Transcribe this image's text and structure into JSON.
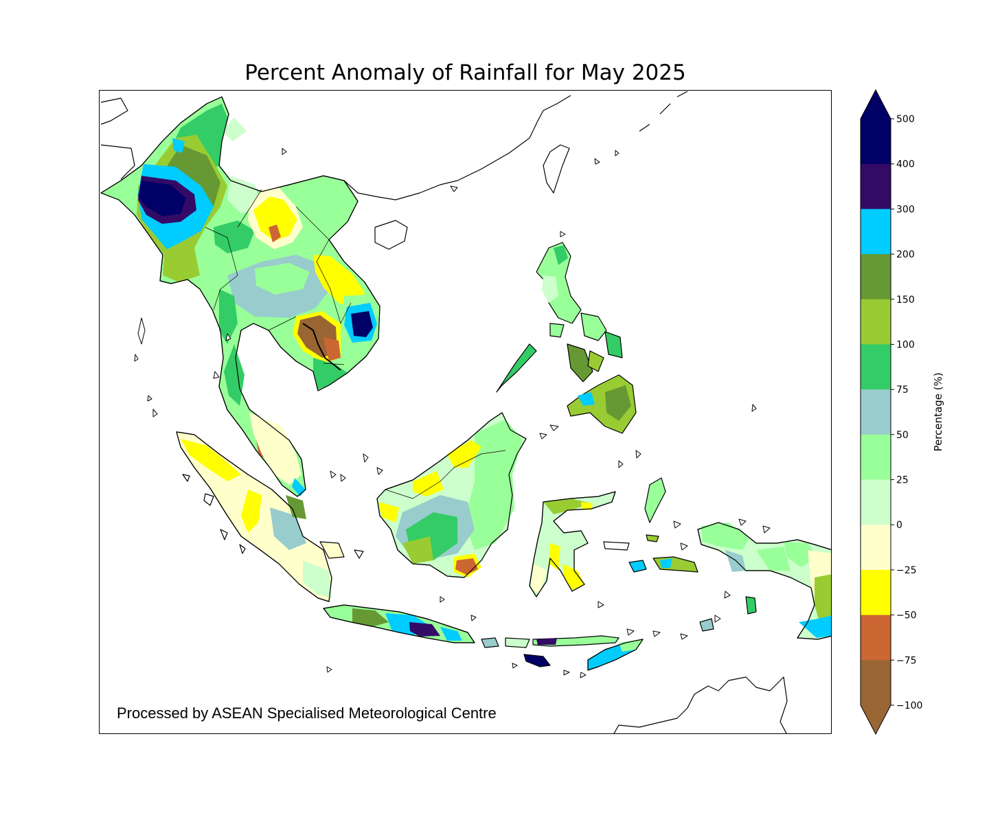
{
  "title": "Percent Anomaly of Rainfall for May 2025",
  "credit": "Processed by ASEAN Specialised Meteorological Centre",
  "colorbar": {
    "label": "Percentage (%)",
    "ticks": [
      "500",
      "400",
      "300",
      "200",
      "150",
      "100",
      "75",
      "50",
      "25",
      "0",
      "−25",
      "−50",
      "−75",
      "−100"
    ],
    "bins": [
      {
        "from": 400,
        "to": 500,
        "color": "#000066"
      },
      {
        "from": 300,
        "to": 400,
        "color": "#330a66"
      },
      {
        "from": 200,
        "to": 300,
        "color": "#00ccff"
      },
      {
        "from": 150,
        "to": 200,
        "color": "#669933"
      },
      {
        "from": 100,
        "to": 150,
        "color": "#99cc33"
      },
      {
        "from": 75,
        "to": 100,
        "color": "#33cc66"
      },
      {
        "from": 50,
        "to": 75,
        "color": "#99cccc"
      },
      {
        "from": 25,
        "to": 50,
        "color": "#99ff99"
      },
      {
        "from": 0,
        "to": 25,
        "color": "#ccffcc"
      },
      {
        "from": -25,
        "to": 0,
        "color": "#ffffcc"
      },
      {
        "from": -50,
        "to": -25,
        "color": "#ffff00"
      },
      {
        "from": -75,
        "to": -50,
        "color": "#cc6633"
      },
      {
        "from": -100,
        "to": -75,
        "color": "#996633"
      }
    ],
    "over_color": "#000066",
    "under_color": "#996633"
  }
}
